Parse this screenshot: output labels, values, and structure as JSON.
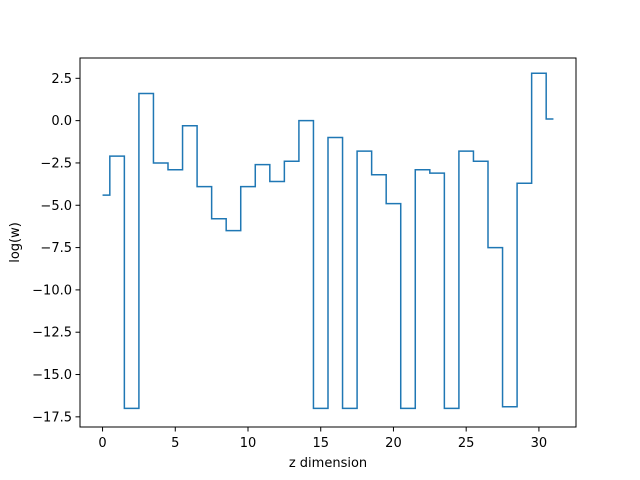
{
  "chart_data": {
    "type": "line",
    "drawstyle": "steps-mid",
    "xlabel": "z dimension",
    "ylabel": "log(w)",
    "xlim": [
      -1.55,
      32.55
    ],
    "ylim": [
      -18.1,
      3.7
    ],
    "xticks": [
      0,
      5,
      10,
      15,
      20,
      25,
      30
    ],
    "xtick_labels": [
      "0",
      "5",
      "10",
      "15",
      "20",
      "25",
      "30"
    ],
    "yticks": [
      2.5,
      0.0,
      -2.5,
      -5.0,
      -7.5,
      -10.0,
      -12.5,
      -15.0,
      -17.5
    ],
    "ytick_labels": [
      "2.5",
      "0.0",
      "−2.5",
      "−5.0",
      "−7.5",
      "−10.0",
      "−12.5",
      "−15.0",
      "−17.5"
    ],
    "grid": false,
    "series": [
      {
        "color": "#1f77b4",
        "x": [
          0,
          1,
          2,
          3,
          4,
          5,
          6,
          7,
          8,
          9,
          10,
          11,
          12,
          13,
          14,
          15,
          16,
          17,
          18,
          19,
          20,
          21,
          22,
          23,
          24,
          25,
          26,
          27,
          28,
          29,
          30,
          31
        ],
        "values": [
          -4.4,
          -2.1,
          -17.0,
          1.6,
          -2.5,
          -2.9,
          -0.3,
          -3.9,
          -5.8,
          -6.5,
          -3.9,
          -2.6,
          -3.6,
          -2.4,
          0.0,
          -17.0,
          -1.0,
          -17.0,
          -1.8,
          -3.2,
          -4.9,
          -17.0,
          -2.9,
          -3.1,
          -17.0,
          -1.8,
          -2.4,
          -7.5,
          -16.9,
          -3.7,
          2.8,
          0.1
        ]
      }
    ]
  }
}
